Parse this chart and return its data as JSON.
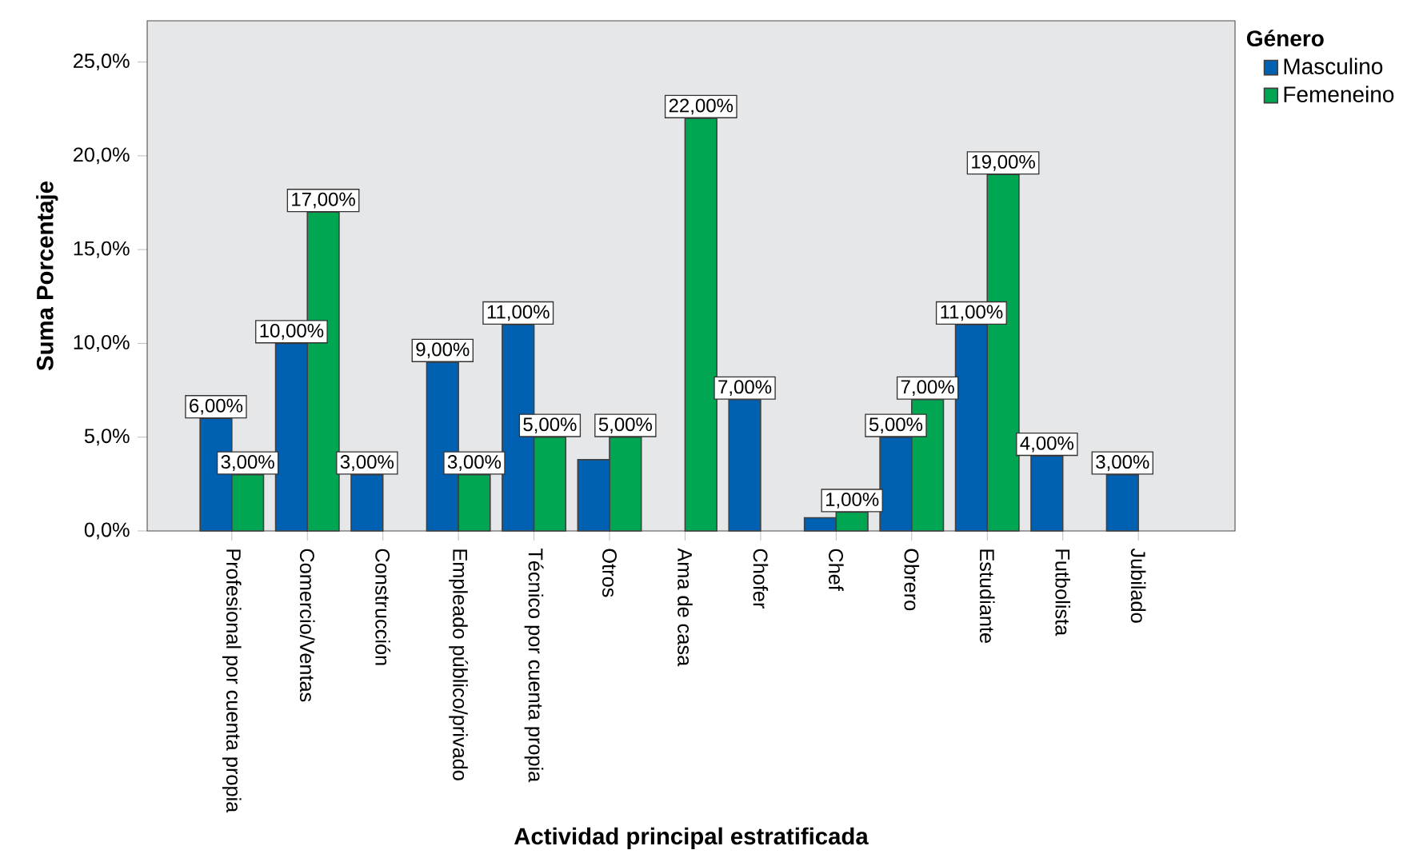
{
  "chart_data": {
    "type": "bar",
    "xlabel": "Actividad principal estratificada",
    "ylabel": "Suma Porcentaje",
    "legend_title": "Género",
    "legend": "top right",
    "categories": [
      "Profesional por cuenta propia",
      "Comercio/Ventas",
      "Construcción",
      "Empleado público/privado",
      "Técnico por cuenta propia",
      "Otros",
      "Ama de casa",
      "Chofer",
      "Chef",
      "Obrero",
      "Estudiante",
      "Futbolista",
      "Jubilado"
    ],
    "series": [
      {
        "name": "Masculino",
        "color": "#0061b2",
        "values": [
          6,
          10,
          3,
          9,
          11,
          3.8,
          null,
          7,
          0.7,
          5,
          11,
          4,
          3
        ],
        "value_labels": [
          "6,00%",
          "10,00%",
          "3,00%",
          "9,00%",
          "11,00%",
          null,
          null,
          "7,00%",
          null,
          "5,00%",
          "11,00%",
          "4,00%",
          "3,00%"
        ]
      },
      {
        "name": "Femeneino",
        "color": "#00a651",
        "values": [
          3,
          17,
          null,
          3,
          5,
          5,
          22,
          null,
          1,
          7,
          19,
          null,
          null
        ],
        "value_labels": [
          "3,00%",
          "17,00%",
          null,
          "3,00%",
          "5,00%",
          "5,00%",
          "22,00%",
          null,
          "1,00%",
          "7,00%",
          "19,00%",
          null,
          null
        ]
      }
    ],
    "ylim": [
      0,
      27.2
    ],
    "yticks": [
      {
        "value": 0,
        "label": "0,0%"
      },
      {
        "value": 5,
        "label": "5,0%"
      },
      {
        "value": 10,
        "label": "10,0%"
      },
      {
        "value": 15,
        "label": "15,0%"
      },
      {
        "value": 20,
        "label": "20,0%"
      },
      {
        "value": 25,
        "label": "25,0%"
      }
    ]
  }
}
